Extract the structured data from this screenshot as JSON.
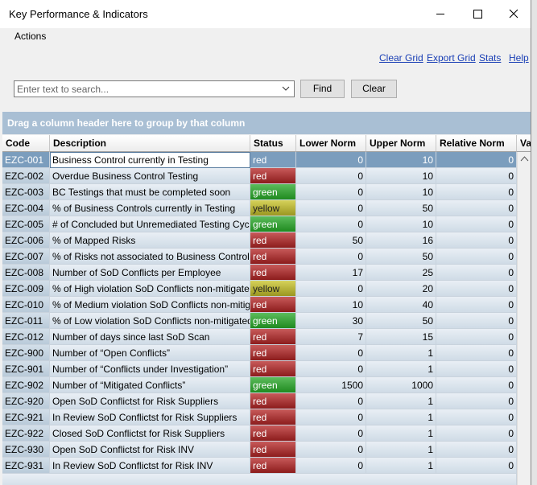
{
  "window": {
    "title": "Key Performance & Indicators",
    "menu": [
      "Actions"
    ]
  },
  "toolbar": {
    "links": [
      "Clear Grid",
      "Export Grid",
      "Stats",
      "Help"
    ]
  },
  "search": {
    "placeholder": "Enter text to search...",
    "buttons": [
      "Find",
      "Clear"
    ]
  },
  "group_panel": "Drag a column header here to group by that column",
  "table": {
    "columns": [
      "Code",
      "Description",
      "Status",
      "Lower Norm",
      "Upper Norm",
      "Relative Norm",
      "Va"
    ],
    "rows": [
      [
        "EZC-001",
        "Business Control currently in Testing",
        "red",
        "0",
        "10",
        "0"
      ],
      [
        "EZC-002",
        "Overdue Business Control Testing",
        "red",
        "0",
        "10",
        "0"
      ],
      [
        "EZC-003",
        "BC Testings that must be completed soon",
        "green",
        "0",
        "10",
        "0"
      ],
      [
        "EZC-004",
        "% of Business Controls currently in Testing",
        "yellow",
        "0",
        "50",
        "0"
      ],
      [
        "EZC-005",
        "# of Concluded but Unremediated Testing Cycles",
        "green",
        "0",
        "10",
        "0"
      ],
      [
        "EZC-006",
        "% of Mapped Risks",
        "red",
        "50",
        "16",
        "0"
      ],
      [
        "EZC-007",
        "% of Risks not associated to Business Controls",
        "red",
        "0",
        "50",
        "0"
      ],
      [
        "EZC-008",
        "Number of SoD Conflicts per Employee",
        "red",
        "17",
        "25",
        "0"
      ],
      [
        "EZC-009",
        "% of High violation SoD Conflicts non-mitigated",
        "yellow",
        "0",
        "20",
        "0"
      ],
      [
        "EZC-010",
        "% of Medium violation SoD Conflicts non-mitigated",
        "red",
        "10",
        "40",
        "0"
      ],
      [
        "EZC-011",
        "% of Low violation SoD Conflicts non-mitigated",
        "green",
        "30",
        "50",
        "0"
      ],
      [
        "EZC-012",
        "Number of days since last SoD Scan",
        "red",
        "7",
        "15",
        "0"
      ],
      [
        "EZC-900",
        "Number of “Open Conflicts”",
        "red",
        "0",
        "1",
        "0"
      ],
      [
        "EZC-901",
        "Number of “Conflicts under Investigation”",
        "red",
        "0",
        "1",
        "0"
      ],
      [
        "EZC-902",
        "Number of “Mitigated Conflicts”",
        "green",
        "1500",
        "1000",
        "0"
      ],
      [
        "EZC-920",
        "Open SoD Conflictst for Risk Suppliers",
        "red",
        "0",
        "1",
        "0"
      ],
      [
        "EZC-921",
        "In Review SoD Conflictst for Risk Suppliers",
        "red",
        "0",
        "1",
        "0"
      ],
      [
        "EZC-922",
        "Closed SoD Conflictst for Risk Suppliers",
        "red",
        "0",
        "1",
        "0"
      ],
      [
        "EZC-930",
        "Open SoD Conflictst for Risk INV",
        "red",
        "0",
        "1",
        "0"
      ],
      [
        "EZC-931",
        "In Review SoD Conflictst for Risk INV",
        "red",
        "0",
        "1",
        "0"
      ]
    ]
  }
}
